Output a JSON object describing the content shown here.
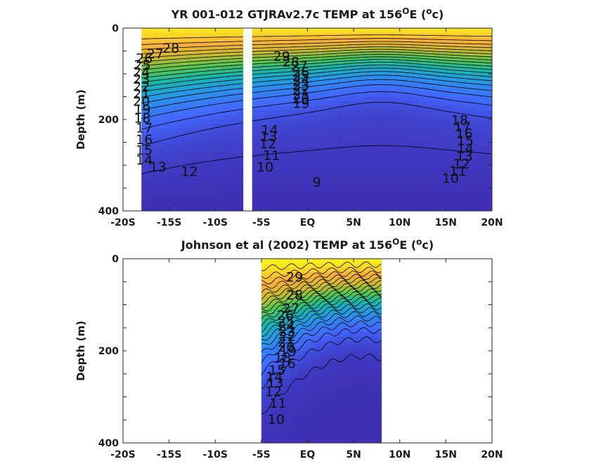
{
  "chart_data": [
    {
      "type": "heatmap",
      "title_parts": [
        "YR 001-012 GTJRAv2.7c TEMP at 156",
        "O",
        "E (",
        "o",
        "c)"
      ],
      "title_sup": [
        false,
        true,
        false,
        true,
        false
      ],
      "xlabel": "",
      "ylabel": "Depth (m)",
      "xlim": [
        -20,
        20
      ],
      "ylim": [
        0,
        400
      ],
      "y_reversed": true,
      "x_ticks": [
        -20,
        -15,
        -10,
        -5,
        0,
        5,
        10,
        15,
        20
      ],
      "x_tick_labels": [
        "-20S",
        "-15S",
        "-10S",
        "-5S",
        "EQ",
        "5N",
        "10N",
        "15N",
        "20N"
      ],
      "y_ticks": [
        0,
        200,
        400
      ],
      "y_tick_labels": [
        "0",
        "200",
        "400"
      ],
      "colormap": [
        "#3e26a8",
        "#4367fd",
        "#2797e9",
        "#15b8ad",
        "#57c64d",
        "#cdba2f",
        "#fbaf3b",
        "#f9fb14"
      ],
      "temp_range": [
        8,
        30
      ],
      "data_extent": [
        -18,
        20
      ],
      "gap": [
        -7,
        -6.2
      ],
      "contour_levels": [
        9,
        10,
        11,
        12,
        13,
        14,
        15,
        16,
        17,
        18,
        19,
        20,
        21,
        22,
        23,
        24,
        25,
        26,
        27,
        28,
        29
      ],
      "contour_labels": [
        {
          "text": "28",
          "x": -14.8,
          "d": 43
        },
        {
          "text": "27",
          "x": -16.5,
          "d": 55
        },
        {
          "text": "26",
          "x": -17.7,
          "d": 65
        },
        {
          "text": "25",
          "x": -17.9,
          "d": 80
        },
        {
          "text": "24",
          "x": -18,
          "d": 95
        },
        {
          "text": "23",
          "x": -18,
          "d": 111
        },
        {
          "text": "22",
          "x": -18,
          "d": 127
        },
        {
          "text": "21",
          "x": -18,
          "d": 143
        },
        {
          "text": "20",
          "x": -18,
          "d": 159
        },
        {
          "text": "19",
          "x": -17.9,
          "d": 177
        },
        {
          "text": "18",
          "x": -17.9,
          "d": 196
        },
        {
          "text": "17",
          "x": -17.7,
          "d": 218
        },
        {
          "text": "16",
          "x": -17.7,
          "d": 243
        },
        {
          "text": "15",
          "x": -17.7,
          "d": 266
        },
        {
          "text": "14",
          "x": -17.7,
          "d": 288
        },
        {
          "text": "13",
          "x": -16.2,
          "d": 303
        },
        {
          "text": "12",
          "x": -12.8,
          "d": 313
        },
        {
          "text": "29",
          "x": -2.8,
          "d": 61
        },
        {
          "text": "28",
          "x": -1.8,
          "d": 73
        },
        {
          "text": "27",
          "x": -0.9,
          "d": 82
        },
        {
          "text": "26",
          "x": -0.7,
          "d": 95
        },
        {
          "text": "25",
          "x": -0.7,
          "d": 104
        },
        {
          "text": "24",
          "x": -0.7,
          "d": 114
        },
        {
          "text": "23",
          "x": -0.7,
          "d": 124
        },
        {
          "text": "22",
          "x": -0.7,
          "d": 134
        },
        {
          "text": "21",
          "x": -0.7,
          "d": 144
        },
        {
          "text": "20",
          "x": -0.7,
          "d": 154
        },
        {
          "text": "19",
          "x": -0.7,
          "d": 164
        },
        {
          "text": "14",
          "x": -4.1,
          "d": 222
        },
        {
          "text": "13",
          "x": -4.2,
          "d": 236
        },
        {
          "text": "12",
          "x": -4.3,
          "d": 252
        },
        {
          "text": "11",
          "x": -3.9,
          "d": 278
        },
        {
          "text": "10",
          "x": -4.6,
          "d": 303
        },
        {
          "text": "9",
          "x": 1,
          "d": 336
        },
        {
          "text": "18",
          "x": 16.5,
          "d": 201
        },
        {
          "text": "17",
          "x": 16.8,
          "d": 215
        },
        {
          "text": "16",
          "x": 17,
          "d": 230
        },
        {
          "text": "15",
          "x": 17.1,
          "d": 245
        },
        {
          "text": "14",
          "x": 17.1,
          "d": 262
        },
        {
          "text": "13",
          "x": 17,
          "d": 279
        },
        {
          "text": "12",
          "x": 16.7,
          "d": 296
        },
        {
          "text": "11",
          "x": 16.3,
          "d": 312
        },
        {
          "text": "10",
          "x": 15.5,
          "d": 328
        }
      ]
    },
    {
      "type": "heatmap",
      "title_parts": [
        "Johnson et al (2002) TEMP at 156",
        "O",
        "E (",
        "o",
        "c)"
      ],
      "title_sup": [
        false,
        true,
        false,
        true,
        false
      ],
      "xlabel": "",
      "ylabel": "Depth (m)",
      "xlim": [
        -20,
        20
      ],
      "ylim": [
        0,
        400
      ],
      "y_reversed": true,
      "x_ticks": [
        -20,
        -15,
        -10,
        -5,
        0,
        5,
        10,
        15,
        20
      ],
      "x_tick_labels": [
        "-20S",
        "-15S",
        "-10S",
        "-5S",
        "EQ",
        "5N",
        "10N",
        "15N",
        "20N"
      ],
      "y_ticks": [
        0,
        200,
        400
      ],
      "y_tick_labels": [
        "0",
        "200",
        "400"
      ],
      "colormap": [
        "#3e26a8",
        "#4367fd",
        "#2797e9",
        "#15b8ad",
        "#57c64d",
        "#cdba2f",
        "#fbaf3b",
        "#f9fb14"
      ],
      "temp_range": [
        8,
        30
      ],
      "data_extent": [
        -5,
        8
      ],
      "contour_levels": [
        9,
        10,
        11,
        12,
        13,
        14,
        15,
        16,
        17,
        18,
        19,
        20,
        21,
        22,
        23,
        24,
        25,
        26,
        27,
        28,
        29
      ],
      "contour_labels": [
        {
          "text": "29",
          "x": -1.4,
          "d": 39
        },
        {
          "text": "28",
          "x": -1.4,
          "d": 78
        },
        {
          "text": "27",
          "x": -1.8,
          "d": 107
        },
        {
          "text": "26",
          "x": -2.4,
          "d": 122
        },
        {
          "text": "25",
          "x": -2.3,
          "d": 135
        },
        {
          "text": "24",
          "x": -2.3,
          "d": 146
        },
        {
          "text": "23",
          "x": -2.2,
          "d": 157
        },
        {
          "text": "22",
          "x": -2.2,
          "d": 168
        },
        {
          "text": "21",
          "x": -2.3,
          "d": 180
        },
        {
          "text": "20",
          "x": -2.3,
          "d": 191
        },
        {
          "text": "19",
          "x": -2.1,
          "d": 201
        },
        {
          "text": "18",
          "x": -2.7,
          "d": 214
        },
        {
          "text": "16",
          "x": -2.2,
          "d": 227
        },
        {
          "text": "15",
          "x": -3.3,
          "d": 241
        },
        {
          "text": "14",
          "x": -3.6,
          "d": 256
        },
        {
          "text": "13",
          "x": -3.5,
          "d": 269
        },
        {
          "text": "12",
          "x": -3.7,
          "d": 288
        },
        {
          "text": "11",
          "x": -3.2,
          "d": 313
        },
        {
          "text": "10",
          "x": -3.4,
          "d": 348
        }
      ]
    }
  ]
}
